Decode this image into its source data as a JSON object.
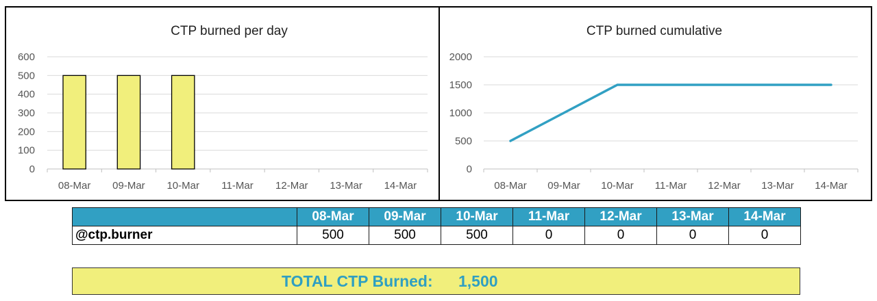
{
  "chart_data": [
    {
      "type": "bar",
      "title": "CTP burned per day",
      "categories": [
        "08-Mar",
        "09-Mar",
        "10-Mar",
        "11-Mar",
        "12-Mar",
        "13-Mar",
        "14-Mar"
      ],
      "values": [
        500,
        500,
        500,
        0,
        0,
        0,
        0
      ],
      "ylim": [
        0,
        600
      ],
      "yticks": [
        0,
        100,
        200,
        300,
        400,
        500,
        600
      ],
      "grid": true,
      "bar_color": "#f1ef7c",
      "bar_edge_color": "#000000"
    },
    {
      "type": "line",
      "title": "CTP burned cumulative",
      "categories": [
        "08-Mar",
        "09-Mar",
        "10-Mar",
        "11-Mar",
        "12-Mar",
        "13-Mar",
        "14-Mar"
      ],
      "values": [
        500,
        1000,
        1500,
        1500,
        1500,
        1500,
        1500
      ],
      "ylim": [
        0,
        2000
      ],
      "yticks": [
        0,
        500,
        1000,
        1500,
        2000
      ],
      "grid": true,
      "line_color": "#31a0c3"
    }
  ],
  "table": {
    "header": [
      "08-Mar",
      "09-Mar",
      "10-Mar",
      "11-Mar",
      "12-Mar",
      "13-Mar",
      "14-Mar"
    ],
    "row_label": "@ctp.burner",
    "values": [
      "500",
      "500",
      "500",
      "0",
      "0",
      "0",
      "0"
    ],
    "header_color": "#31a0c3"
  },
  "total": {
    "label": "TOTAL CTP Burned:",
    "value": "1,500",
    "background": "#f1ef7c",
    "text_color": "#2f9fc2"
  }
}
